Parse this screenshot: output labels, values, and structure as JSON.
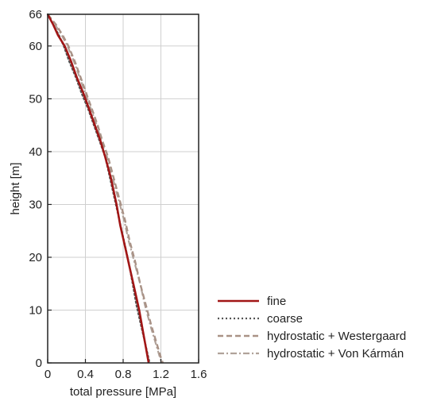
{
  "chart_data": {
    "type": "line",
    "xlabel": "total pressure [MPa]",
    "ylabel": "height [m]",
    "xlim": [
      0,
      1.6
    ],
    "ylim": [
      0,
      66
    ],
    "xticks": [
      0,
      0.4,
      0.8,
      1.2,
      1.6
    ],
    "xtick_labels": [
      "0",
      "0.4",
      "0.8",
      "1.2",
      "1.6"
    ],
    "yticks": [
      0,
      10,
      20,
      30,
      40,
      50,
      60,
      66
    ],
    "ytick_labels": [
      "0",
      "10",
      "20",
      "30",
      "40",
      "50",
      "60",
      "66"
    ],
    "grid": true,
    "legend_position": "bottom-right, outside plot",
    "series": [
      {
        "name": "fine",
        "color": "#a11616",
        "dash": "solid",
        "points": [
          [
            0.0,
            66
          ],
          [
            0.06,
            64
          ],
          [
            0.11,
            62
          ],
          [
            0.18,
            60
          ],
          [
            0.25,
            57
          ],
          [
            0.31,
            54
          ],
          [
            0.38,
            51
          ],
          [
            0.44,
            48
          ],
          [
            0.5,
            45
          ],
          [
            0.56,
            42
          ],
          [
            0.61,
            39
          ],
          [
            0.67,
            35
          ],
          [
            0.73,
            30
          ],
          [
            0.77,
            26
          ],
          [
            0.82,
            22
          ],
          [
            0.87,
            18
          ],
          [
            0.92,
            14
          ],
          [
            0.97,
            10
          ],
          [
            1.01,
            6
          ],
          [
            1.04,
            3
          ],
          [
            1.07,
            0
          ]
        ]
      },
      {
        "name": "coarse",
        "color": "#555555",
        "dash": "dotted",
        "points": [
          [
            0.0,
            66
          ],
          [
            0.06,
            64
          ],
          [
            0.12,
            62
          ],
          [
            0.17,
            60
          ],
          [
            0.23,
            57
          ],
          [
            0.3,
            54
          ],
          [
            0.36,
            51
          ],
          [
            0.43,
            48
          ],
          [
            0.49,
            45
          ],
          [
            0.55,
            42
          ],
          [
            0.61,
            39
          ],
          [
            0.66,
            35
          ],
          [
            0.71,
            31
          ],
          [
            0.76,
            27
          ],
          [
            0.81,
            23
          ],
          [
            0.86,
            19
          ],
          [
            0.9,
            15
          ],
          [
            0.94,
            11
          ],
          [
            0.99,
            7
          ],
          [
            1.03,
            4
          ],
          [
            1.08,
            0
          ]
        ]
      },
      {
        "name": "hydrostatic + Westergaard",
        "color": "#a99286",
        "dash": "dashed",
        "points": [
          [
            0.0,
            66
          ],
          [
            0.09,
            64
          ],
          [
            0.16,
            62
          ],
          [
            0.22,
            60
          ],
          [
            0.29,
            57
          ],
          [
            0.35,
            54
          ],
          [
            0.41,
            51
          ],
          [
            0.47,
            48
          ],
          [
            0.53,
            45
          ],
          [
            0.58,
            42
          ],
          [
            0.64,
            39
          ],
          [
            0.7,
            35
          ],
          [
            0.76,
            31
          ],
          [
            0.82,
            27
          ],
          [
            0.87,
            23
          ],
          [
            0.93,
            19
          ],
          [
            0.98,
            15
          ],
          [
            1.04,
            11
          ],
          [
            1.1,
            7
          ],
          [
            1.15,
            4
          ],
          [
            1.2,
            1
          ],
          [
            1.22,
            0
          ]
        ]
      },
      {
        "name": "hydrostatic + Von Kármán",
        "color": "#b0a29a",
        "dash": "dashdot",
        "points": [
          [
            0.0,
            66
          ],
          [
            0.08,
            64
          ],
          [
            0.15,
            62
          ],
          [
            0.21,
            60
          ],
          [
            0.28,
            57
          ],
          [
            0.34,
            54
          ],
          [
            0.4,
            51
          ],
          [
            0.46,
            48
          ],
          [
            0.52,
            45
          ],
          [
            0.57,
            42
          ],
          [
            0.63,
            39
          ],
          [
            0.69,
            35
          ],
          [
            0.75,
            31
          ],
          [
            0.81,
            27
          ],
          [
            0.86,
            23
          ],
          [
            0.92,
            19
          ],
          [
            0.98,
            15
          ],
          [
            1.03,
            11
          ],
          [
            1.09,
            7
          ],
          [
            1.14,
            4
          ],
          [
            1.19,
            1
          ],
          [
            1.21,
            0
          ]
        ]
      }
    ]
  }
}
